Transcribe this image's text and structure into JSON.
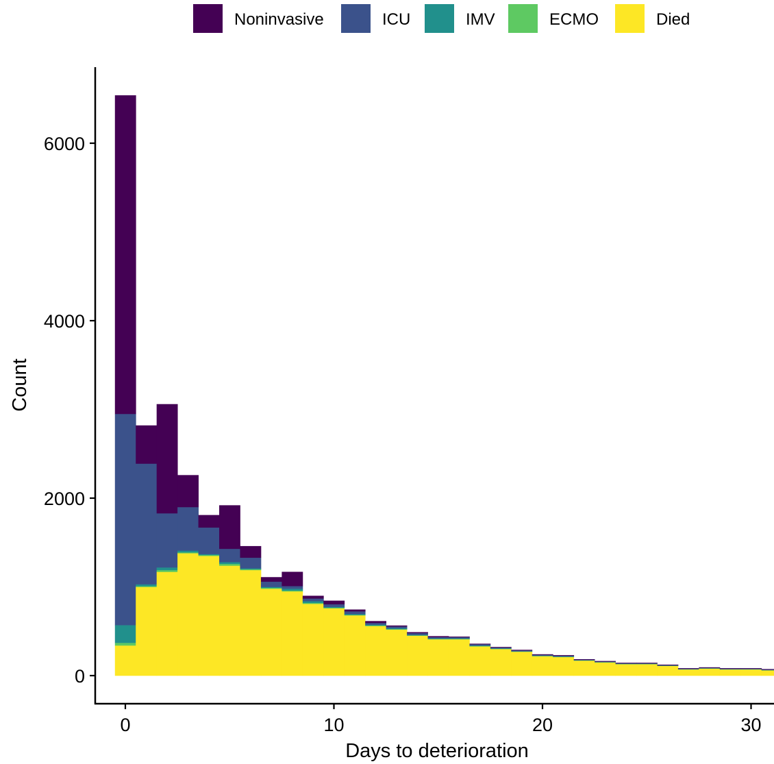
{
  "chart_data": {
    "type": "bar",
    "stacked": true,
    "xlabel": "Days to deterioration",
    "ylabel": "Count",
    "x_ticks": [
      0,
      10,
      20,
      30
    ],
    "y_ticks": [
      0,
      2000,
      4000,
      6000
    ],
    "xlim": [
      -1.6,
      31.4
    ],
    "ylim": [
      -330,
      6880
    ],
    "legend_position": "top",
    "x": [
      0,
      1,
      2,
      3,
      4,
      5,
      6,
      7,
      8,
      9,
      10,
      11,
      12,
      13,
      14,
      15,
      16,
      17,
      18,
      19,
      20,
      21,
      22,
      23,
      24,
      25,
      26,
      27,
      28,
      29,
      30,
      31
    ],
    "series": [
      {
        "name": "Died",
        "color": "#FDE725",
        "values": [
          340,
          1000,
          1170,
          1380,
          1350,
          1240,
          1190,
          980,
          950,
          810,
          760,
          680,
          560,
          520,
          450,
          410,
          410,
          330,
          300,
          270,
          220,
          210,
          170,
          150,
          130,
          130,
          110,
          70,
          80,
          70,
          70,
          60
        ]
      },
      {
        "name": "ECMO",
        "color": "#5EC962",
        "values": [
          30,
          10,
          20,
          10,
          10,
          20,
          10,
          10,
          10,
          10,
          5,
          5,
          5,
          5,
          5,
          5,
          5,
          5,
          3,
          3,
          3,
          3,
          2,
          2,
          2,
          2,
          2,
          2,
          2,
          2,
          2,
          2
        ]
      },
      {
        "name": "IMV",
        "color": "#21908C",
        "values": [
          200,
          20,
          30,
          20,
          10,
          20,
          10,
          10,
          20,
          20,
          10,
          10,
          10,
          10,
          5,
          5,
          5,
          5,
          5,
          3,
          3,
          3,
          3,
          3,
          3,
          3,
          2,
          2,
          2,
          2,
          2,
          2
        ]
      },
      {
        "name": "ICU",
        "color": "#3B528B",
        "values": [
          2380,
          1360,
          610,
          490,
          300,
          150,
          120,
          60,
          30,
          30,
          30,
          30,
          20,
          20,
          20,
          15,
          15,
          15,
          10,
          10,
          10,
          10,
          5,
          5,
          5,
          5,
          5,
          5,
          5,
          5,
          5,
          5
        ]
      },
      {
        "name": "Noninvasive",
        "color": "#440154",
        "values": [
          3590,
          430,
          1230,
          360,
          140,
          490,
          130,
          50,
          160,
          30,
          40,
          20,
          20,
          10,
          10,
          10,
          5,
          5,
          5,
          5,
          5,
          5,
          5,
          5,
          5,
          5,
          5,
          5,
          5,
          5,
          5,
          5
        ]
      }
    ],
    "legend_order": [
      "Noninvasive",
      "ICU",
      "IMV",
      "ECMO",
      "Died"
    ]
  }
}
